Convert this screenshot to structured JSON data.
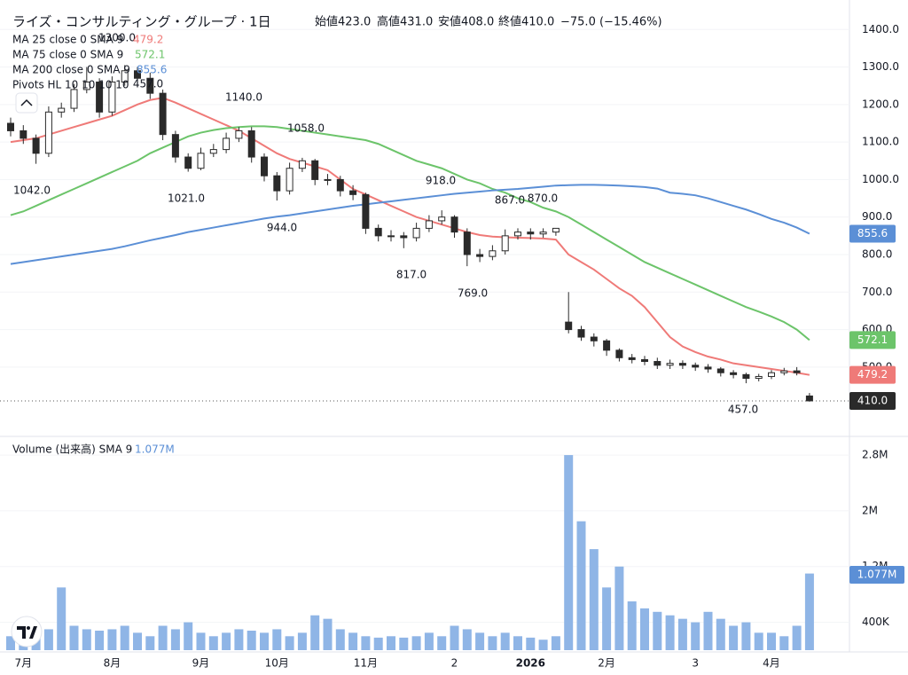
{
  "chart_data": {
    "type": "candlestick",
    "title": "ライズ・コンサルティング・グループ · 1日",
    "open_label": "始値423.0",
    "high_label": "高値431.0",
    "low_label": "安値408.0",
    "close_label": "終値410.0",
    "change_label": "−75.0 (−15.46%)",
    "categories": [
      null,
      "7月",
      null,
      null,
      null,
      null,
      null,
      null,
      "8月",
      null,
      null,
      null,
      null,
      null,
      null,
      "9月",
      null,
      null,
      null,
      null,
      null,
      "10月",
      null,
      null,
      null,
      null,
      null,
      null,
      "11月",
      null,
      null,
      null,
      null,
      null,
      null,
      "2",
      null,
      null,
      null,
      null,
      null,
      "2026",
      null,
      null,
      null,
      null,
      null,
      "2月",
      null,
      null,
      null,
      null,
      null,
      null,
      "3",
      null,
      null,
      null,
      null,
      null,
      "4月",
      null,
      null,
      null
    ],
    "open": [
      1150,
      1130,
      1110,
      1070,
      1180,
      1190,
      1240,
      1260,
      1180,
      1260,
      1290,
      1270,
      1230,
      1120,
      1060,
      1030,
      1070,
      1080,
      1110,
      1130,
      1060,
      1010,
      970,
      1030,
      1050,
      1000,
      1000,
      970,
      960,
      870,
      850,
      850,
      845,
      870,
      890,
      900,
      860,
      800,
      795,
      810,
      850,
      860,
      855,
      860,
      620,
      600,
      580,
      570,
      545,
      525,
      520,
      515,
      505,
      510,
      505,
      500,
      495,
      485,
      480,
      470,
      475,
      485,
      490,
      423
    ],
    "high": [
      1165,
      1145,
      1120,
      1195,
      1205,
      1255,
      1300,
      1270,
      1275,
      1305,
      1300,
      1285,
      1240,
      1130,
      1070,
      1085,
      1095,
      1125,
      1140,
      1140,
      1070,
      1020,
      1045,
      1058,
      1055,
      1015,
      1010,
      985,
      965,
      880,
      865,
      860,
      885,
      905,
      918,
      905,
      870,
      815,
      825,
      867,
      870,
      870,
      870,
      870,
      700,
      610,
      590,
      575,
      550,
      535,
      530,
      525,
      520,
      518,
      512,
      508,
      500,
      492,
      485,
      482,
      492,
      498,
      500,
      431
    ],
    "low": [
      1115,
      1095,
      1042,
      1060,
      1165,
      1180,
      1230,
      1165,
      1170,
      1250,
      1255,
      1215,
      1105,
      1045,
      1021,
      1025,
      1060,
      1070,
      1100,
      1045,
      995,
      944,
      960,
      1020,
      985,
      985,
      955,
      945,
      855,
      835,
      835,
      817,
      835,
      860,
      880,
      845,
      769,
      780,
      785,
      800,
      840,
      840,
      845,
      850,
      590,
      570,
      555,
      530,
      515,
      510,
      505,
      495,
      495,
      495,
      490,
      485,
      475,
      470,
      457,
      462,
      468,
      478,
      478,
      408
    ],
    "close": [
      1130,
      1110,
      1070,
      1180,
      1190,
      1240,
      1260,
      1180,
      1260,
      1290,
      1270,
      1230,
      1120,
      1060,
      1030,
      1070,
      1080,
      1110,
      1130,
      1060,
      1010,
      970,
      1030,
      1050,
      1000,
      1000,
      970,
      960,
      870,
      850,
      850,
      845,
      870,
      890,
      900,
      860,
      800,
      795,
      810,
      850,
      860,
      855,
      860,
      870,
      600,
      580,
      570,
      545,
      525,
      520,
      515,
      505,
      510,
      505,
      500,
      495,
      485,
      480,
      470,
      475,
      485,
      490,
      485,
      410
    ],
    "up_color": "#ffffff",
    "down_color": "#2a2a2a",
    "last_label": "410.0",
    "series": [
      {
        "name": "MA 25 close 0 SMA 9",
        "color": "#ef7a78",
        "values": [
          1100,
          1105,
          1110,
          1120,
          1130,
          1140,
          1150,
          1160,
          1170,
          1185,
          1200,
          1212,
          1218,
          1205,
          1190,
          1175,
          1160,
          1145,
          1130,
          1110,
          1090,
          1070,
          1055,
          1045,
          1035,
          1025,
          1000,
          975,
          960,
          945,
          930,
          915,
          900,
          890,
          880,
          870,
          860,
          852,
          848,
          846,
          845,
          844,
          843,
          840,
          800,
          780,
          760,
          735,
          710,
          690,
          660,
          620,
          580,
          555,
          540,
          528,
          520,
          510,
          505,
          500,
          495,
          490,
          485,
          479.2
        ]
      },
      {
        "name": "MA 75 close 0 SMA 9",
        "color": "#6cc46a",
        "values": [
          905,
          915,
          930,
          945,
          960,
          975,
          990,
          1005,
          1020,
          1035,
          1050,
          1070,
          1085,
          1100,
          1115,
          1125,
          1132,
          1137,
          1140,
          1142,
          1142,
          1140,
          1135,
          1130,
          1125,
          1120,
          1115,
          1110,
          1105,
          1095,
          1080,
          1065,
          1050,
          1040,
          1030,
          1015,
          1000,
          990,
          975,
          965,
          950,
          940,
          925,
          915,
          900,
          880,
          860,
          840,
          820,
          800,
          780,
          765,
          750,
          735,
          720,
          705,
          690,
          675,
          660,
          648,
          635,
          620,
          600,
          572.1
        ]
      },
      {
        "name": "MA 200 close 0 SMA 9",
        "color": "#5b8fd6",
        "values": [
          775,
          780,
          785,
          790,
          795,
          800,
          805,
          810,
          815,
          822,
          830,
          838,
          845,
          852,
          860,
          866,
          872,
          878,
          884,
          890,
          896,
          901,
          905,
          910,
          915,
          920,
          925,
          930,
          934,
          938,
          942,
          946,
          950,
          954,
          958,
          962,
          965,
          968,
          971,
          973,
          975,
          978,
          981,
          984,
          985,
          986,
          986,
          985,
          984,
          982,
          980,
          976,
          965,
          962,
          958,
          950,
          940,
          930,
          920,
          908,
          895,
          885,
          872,
          855.6
        ]
      }
    ],
    "pivots_label": "Pivots HL 10 10 10 10",
    "pivot_labels": [
      "1300.0",
      "457.0",
      "1140.0",
      "1058.0",
      "918.0",
      "867.0",
      "870.0",
      "1042.0",
      "1021.0",
      "944.0",
      "817.0",
      "769.0",
      "457.0"
    ],
    "ylim": [
      320,
      1455
    ],
    "yticks": [
      {
        "value": 500,
        "label": "500.0"
      },
      {
        "value": 600,
        "label": "600.0"
      },
      {
        "value": 700,
        "label": "700.0"
      },
      {
        "value": 800,
        "label": "800.0"
      },
      {
        "value": 900,
        "label": "900.0"
      },
      {
        "value": 1000,
        "label": "1000.0"
      },
      {
        "value": 1100,
        "label": "1100.0"
      },
      {
        "value": 1200,
        "label": "1200.0"
      },
      {
        "value": 1300,
        "label": "1300.0"
      },
      {
        "value": 1400,
        "label": "1400.0"
      }
    ],
    "volume": {
      "name": "Volume (出来高) SMA 9",
      "sma_label": "1.077M",
      "color": "#8fb5e6",
      "values": [
        200000,
        250000,
        300000,
        300000,
        900000,
        350000,
        300000,
        280000,
        300000,
        350000,
        250000,
        200000,
        350000,
        300000,
        400000,
        250000,
        200000,
        250000,
        300000,
        280000,
        250000,
        300000,
        200000,
        250000,
        500000,
        450000,
        300000,
        250000,
        200000,
        180000,
        200000,
        180000,
        200000,
        250000,
        200000,
        350000,
        300000,
        250000,
        200000,
        250000,
        200000,
        180000,
        150000,
        200000,
        2800000,
        1850000,
        1450000,
        900000,
        1200000,
        700000,
        600000,
        550000,
        500000,
        450000,
        400000,
        550000,
        450000,
        350000,
        400000,
        250000,
        250000,
        200000,
        350000,
        1100000
      ],
      "ylim": [
        0,
        3030000
      ],
      "yticks": [
        {
          "value": 400000,
          "label": "400K"
        },
        {
          "value": 1200000,
          "label": "1.2M"
        },
        {
          "value": 2000000,
          "label": "2M"
        },
        {
          "value": 2800000,
          "label": "2.8M"
        }
      ]
    }
  }
}
